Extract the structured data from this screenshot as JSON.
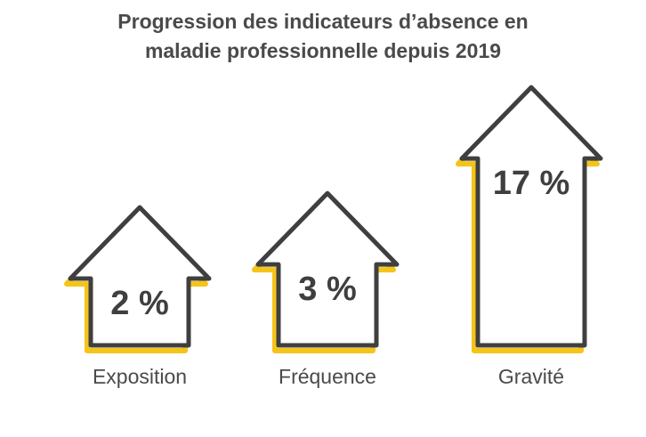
{
  "chart_data": {
    "type": "arrow",
    "title": "Progression des indicateurs d’absence en maladie professionnelle depuis 2019",
    "categories": [
      "Exposition",
      "Fréquence",
      "Gravité"
    ],
    "values": [
      2,
      3,
      17
    ],
    "value_labels": [
      "2 %",
      "3 %",
      "17 %"
    ],
    "color": "#f5c419"
  }
}
